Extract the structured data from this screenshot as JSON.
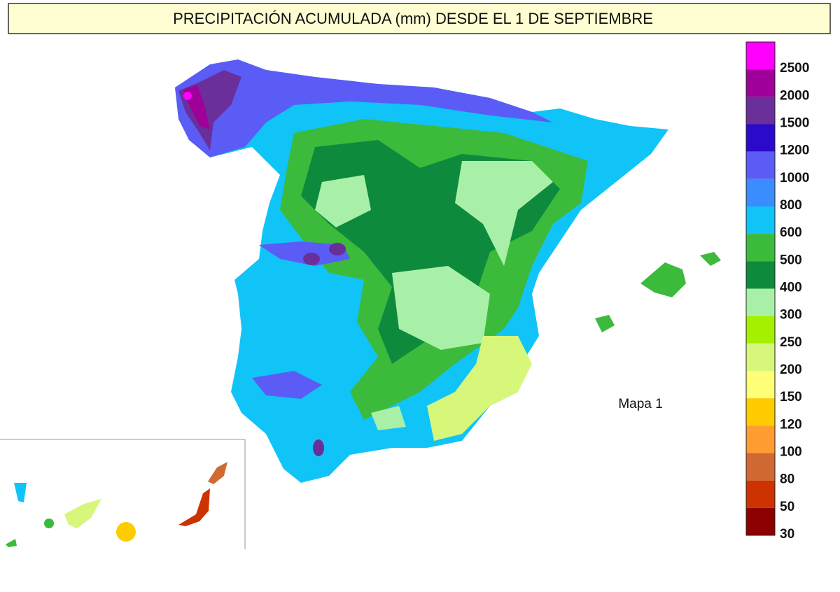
{
  "title": "PRECIPITACIÓN ACUMULADA (mm) DESDE EL 1 DE SEPTIEMBRE",
  "map_label": "Mapa 1",
  "legend": {
    "items": [
      {
        "color": "#ff00ff",
        "label": 2500
      },
      {
        "color": "#a0009a",
        "label": 2000
      },
      {
        "color": "#6a2f9a",
        "label": 1500
      },
      {
        "color": "#2c0acc",
        "label": 1200
      },
      {
        "color": "#5b5cf5",
        "label": 1000
      },
      {
        "color": "#3a8cff",
        "label": 800
      },
      {
        "color": "#10c4f8",
        "label": 600
      },
      {
        "color": "#3cba3c",
        "label": 500
      },
      {
        "color": "#0e8a3c",
        "label": 400
      },
      {
        "color": "#a8f0a8",
        "label": 300
      },
      {
        "color": "#a4f000",
        "label": 250
      },
      {
        "color": "#d6f77a",
        "label": 200
      },
      {
        "color": "#ffff78",
        "label": 150
      },
      {
        "color": "#ffcc00",
        "label": 120
      },
      {
        "color": "#ff9c32",
        "label": 100
      },
      {
        "color": "#d06a32",
        "label": 80
      },
      {
        "color": "#cc3300",
        "label": 50
      },
      {
        "color": "#8c0000",
        "label": 30
      }
    ]
  }
}
